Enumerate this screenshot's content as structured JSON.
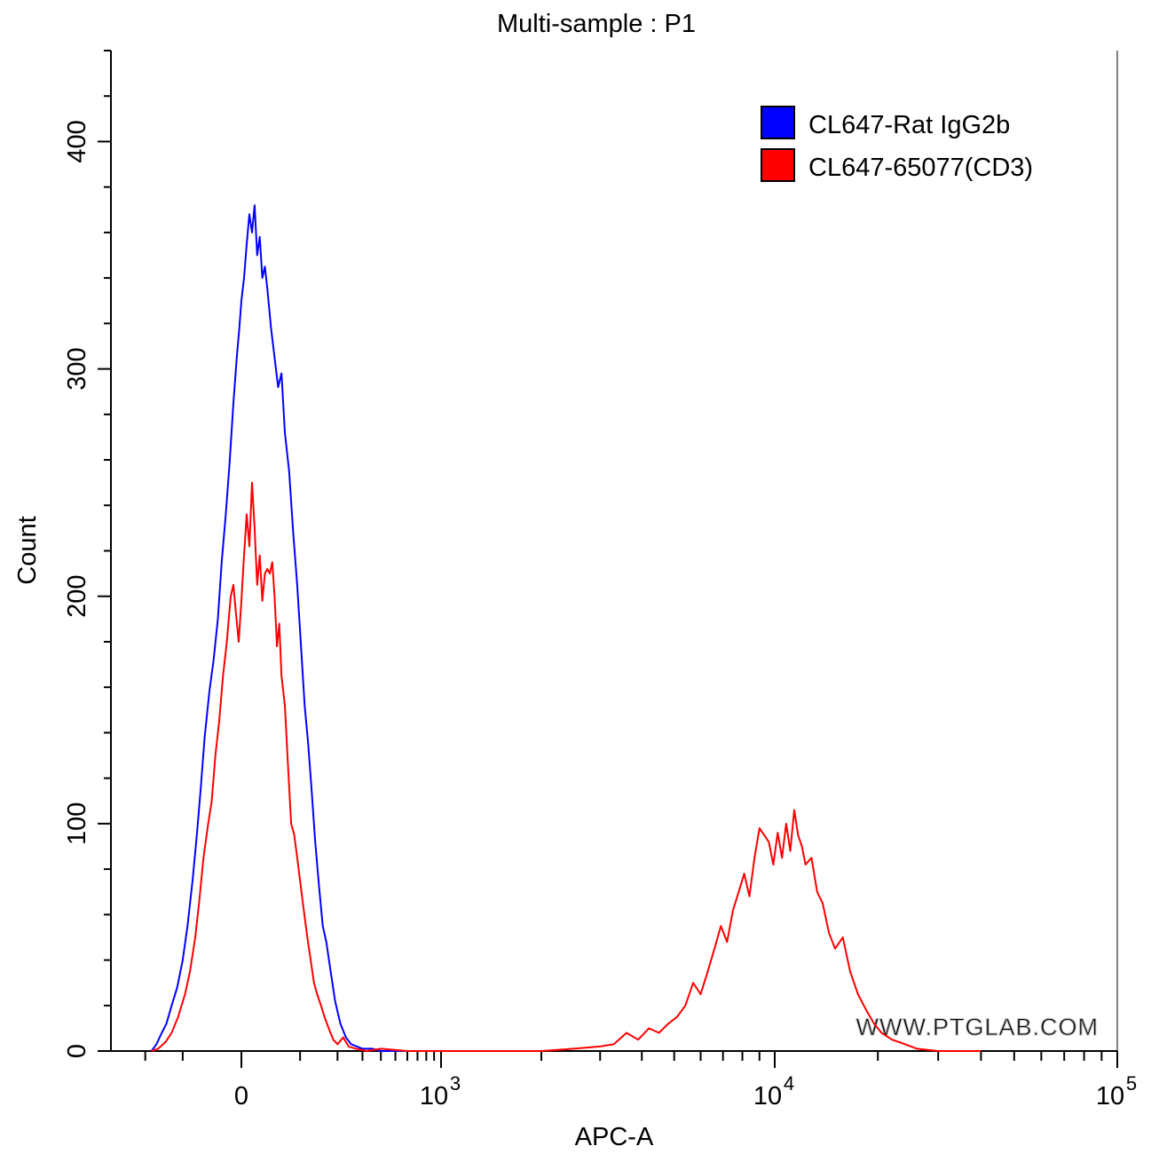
{
  "chart_data": {
    "type": "line",
    "title": "Multi-sample : P1",
    "xlabel": "APC-A",
    "ylabel": "Count",
    "x_scale": "biexponential",
    "x_range": [
      -200,
      100000
    ],
    "ylim": [
      0,
      440
    ],
    "y_ticks": [
      0,
      100,
      200,
      300,
      400
    ],
    "y_tick_labels": [
      "0",
      "100",
      "200",
      "300",
      "400"
    ],
    "x_ticks": [
      0,
      1000,
      10000,
      100000
    ],
    "x_tick_labels": [
      {
        "base": "0",
        "exp": ""
      },
      {
        "base": "10",
        "exp": "3"
      },
      {
        "base": "10",
        "exp": "4"
      },
      {
        "base": "10",
        "exp": "5"
      }
    ],
    "legend_position": "top-right",
    "watermark": "WWW.PTGLAB.COM",
    "series": [
      {
        "name": "CL647-Rat IgG2b",
        "color": "#0000ff",
        "points": [
          [
            -180,
            0
          ],
          [
            -165,
            3
          ],
          [
            -150,
            8
          ],
          [
            -138,
            12
          ],
          [
            -125,
            20
          ],
          [
            -112,
            28
          ],
          [
            -100,
            40
          ],
          [
            -90,
            55
          ],
          [
            -80,
            75
          ],
          [
            -72,
            95
          ],
          [
            -65,
            115
          ],
          [
            -58,
            138
          ],
          [
            -50,
            158
          ],
          [
            -43,
            172
          ],
          [
            -36,
            190
          ],
          [
            -30,
            215
          ],
          [
            -24,
            235
          ],
          [
            -18,
            258
          ],
          [
            -12,
            285
          ],
          [
            -7,
            305
          ],
          [
            -3,
            318
          ],
          [
            0,
            330
          ],
          [
            4,
            340
          ],
          [
            8,
            355
          ],
          [
            12,
            368
          ],
          [
            16,
            360
          ],
          [
            20,
            372
          ],
          [
            24,
            350
          ],
          [
            28,
            358
          ],
          [
            32,
            340
          ],
          [
            36,
            345
          ],
          [
            40,
            335
          ],
          [
            46,
            318
          ],
          [
            52,
            305
          ],
          [
            58,
            292
          ],
          [
            64,
            298
          ],
          [
            70,
            272
          ],
          [
            78,
            255
          ],
          [
            86,
            228
          ],
          [
            94,
            205
          ],
          [
            102,
            178
          ],
          [
            110,
            152
          ],
          [
            118,
            135
          ],
          [
            126,
            115
          ],
          [
            135,
            92
          ],
          [
            145,
            72
          ],
          [
            155,
            55
          ],
          [
            165,
            48
          ],
          [
            178,
            35
          ],
          [
            192,
            22
          ],
          [
            210,
            12
          ],
          [
            230,
            6
          ],
          [
            250,
            3
          ],
          [
            275,
            2
          ],
          [
            300,
            1
          ],
          [
            350,
            1
          ],
          [
            400,
            0
          ],
          [
            500,
            0
          ],
          [
            700,
            0
          ],
          [
            1000,
            0
          ],
          [
            2000,
            0
          ]
        ]
      },
      {
        "name": "CL647-65077(CD3)",
        "color": "#ff0000",
        "points": [
          [
            -180,
            0
          ],
          [
            -160,
            1
          ],
          [
            -140,
            4
          ],
          [
            -125,
            8
          ],
          [
            -110,
            15
          ],
          [
            -95,
            25
          ],
          [
            -85,
            35
          ],
          [
            -75,
            50
          ],
          [
            -68,
            65
          ],
          [
            -60,
            85
          ],
          [
            -52,
            100
          ],
          [
            -46,
            110
          ],
          [
            -40,
            130
          ],
          [
            -34,
            145
          ],
          [
            -28,
            165
          ],
          [
            -22,
            180
          ],
          [
            -16,
            200
          ],
          [
            -12,
            205
          ],
          [
            -8,
            192
          ],
          [
            -4,
            180
          ],
          [
            0,
            198
          ],
          [
            4,
            218
          ],
          [
            8,
            236
          ],
          [
            12,
            222
          ],
          [
            16,
            250
          ],
          [
            20,
            230
          ],
          [
            24,
            205
          ],
          [
            28,
            218
          ],
          [
            32,
            198
          ],
          [
            36,
            210
          ],
          [
            40,
            212
          ],
          [
            44,
            210
          ],
          [
            48,
            215
          ],
          [
            52,
            200
          ],
          [
            56,
            178
          ],
          [
            60,
            188
          ],
          [
            64,
            165
          ],
          [
            70,
            152
          ],
          [
            76,
            125
          ],
          [
            82,
            100
          ],
          [
            88,
            95
          ],
          [
            94,
            85
          ],
          [
            100,
            75
          ],
          [
            108,
            62
          ],
          [
            116,
            50
          ],
          [
            124,
            40
          ],
          [
            132,
            30
          ],
          [
            140,
            25
          ],
          [
            150,
            20
          ],
          [
            160,
            15
          ],
          [
            172,
            10
          ],
          [
            186,
            5
          ],
          [
            200,
            3
          ],
          [
            220,
            6
          ],
          [
            240,
            2
          ],
          [
            270,
            1
          ],
          [
            320,
            0
          ],
          [
            400,
            1
          ],
          [
            600,
            0
          ],
          [
            900,
            0
          ],
          [
            1200,
            0
          ],
          [
            1500,
            0
          ],
          [
            2000,
            0
          ],
          [
            2500,
            1
          ],
          [
            3000,
            2
          ],
          [
            3300,
            3
          ],
          [
            3600,
            8
          ],
          [
            3900,
            5
          ],
          [
            4200,
            10
          ],
          [
            4500,
            8
          ],
          [
            4800,
            12
          ],
          [
            5100,
            15
          ],
          [
            5400,
            20
          ],
          [
            5700,
            30
          ],
          [
            6000,
            25
          ],
          [
            6300,
            35
          ],
          [
            6600,
            45
          ],
          [
            6900,
            55
          ],
          [
            7200,
            48
          ],
          [
            7500,
            62
          ],
          [
            7800,
            70
          ],
          [
            8100,
            78
          ],
          [
            8400,
            68
          ],
          [
            8700,
            85
          ],
          [
            9000,
            98
          ],
          [
            9300,
            95
          ],
          [
            9600,
            92
          ],
          [
            9900,
            82
          ],
          [
            10200,
            96
          ],
          [
            10500,
            85
          ],
          [
            10800,
            100
          ],
          [
            11100,
            88
          ],
          [
            11400,
            106
          ],
          [
            11700,
            95
          ],
          [
            12000,
            90
          ],
          [
            12300,
            82
          ],
          [
            12800,
            85
          ],
          [
            13300,
            70
          ],
          [
            13800,
            65
          ],
          [
            14400,
            52
          ],
          [
            15000,
            45
          ],
          [
            15800,
            50
          ],
          [
            16600,
            35
          ],
          [
            17500,
            25
          ],
          [
            18500,
            18
          ],
          [
            19500,
            12
          ],
          [
            20500,
            8
          ],
          [
            22000,
            5
          ],
          [
            24000,
            3
          ],
          [
            26000,
            1
          ],
          [
            30000,
            0
          ],
          [
            40000,
            0
          ]
        ]
      }
    ]
  }
}
